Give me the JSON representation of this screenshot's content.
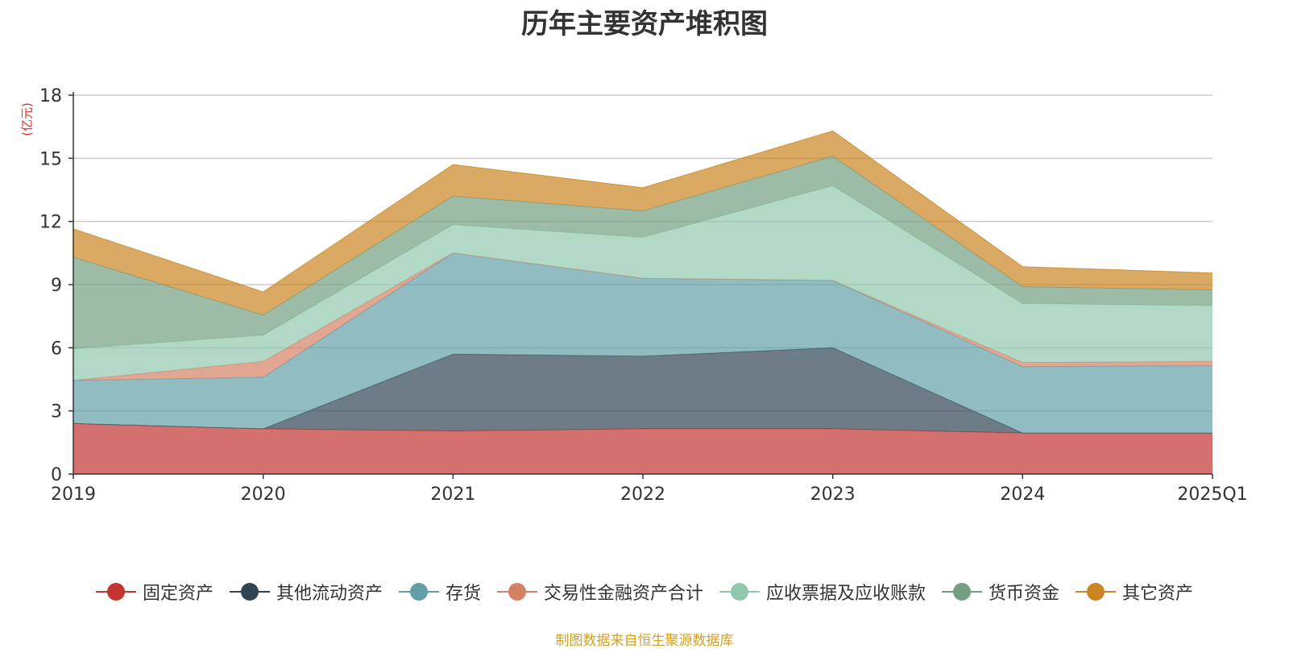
{
  "title": "历年主要资产堆积图",
  "unit_label": "(亿元)",
  "footer": "制图数据来自恒生聚源数据库",
  "colors": {
    "unit": "#e03030",
    "footer": "#d4a020",
    "axis": "#333333",
    "grid": "#cccccc"
  },
  "chart_data": {
    "type": "area",
    "stacked": true,
    "categories": [
      "2019",
      "2020",
      "2021",
      "2022",
      "2023",
      "2024",
      "2025Q1"
    ],
    "ylim": [
      0,
      18
    ],
    "yticks": [
      0,
      3,
      6,
      9,
      12,
      15,
      18
    ],
    "grid": true,
    "legend_position": "bottom",
    "series": [
      {
        "name": "固定资产",
        "color": "#c23531",
        "values": [
          2.4,
          2.15,
          2.05,
          2.15,
          2.15,
          1.95,
          1.95
        ]
      },
      {
        "name": "其他流动资产",
        "color": "#2f4554",
        "values": [
          0.0,
          0.0,
          3.65,
          3.45,
          3.85,
          0.0,
          0.0
        ]
      },
      {
        "name": "存货",
        "color": "#61a0a8",
        "values": [
          2.05,
          2.45,
          4.8,
          3.7,
          3.2,
          3.15,
          3.2
        ]
      },
      {
        "name": "交易性金融资产合计",
        "color": "#d48265",
        "values": [
          0.0,
          0.75,
          0.0,
          0.0,
          0.0,
          0.2,
          0.2
        ]
      },
      {
        "name": "应收票据及应收账款",
        "color": "#91c7ae",
        "values": [
          1.5,
          1.25,
          1.35,
          1.95,
          4.5,
          2.8,
          2.65
        ]
      },
      {
        "name": "货币资金",
        "color": "#749f83",
        "values": [
          4.35,
          0.95,
          1.35,
          1.25,
          1.4,
          0.8,
          0.75
        ]
      },
      {
        "name": "其它资产",
        "color": "#ca8622",
        "values": [
          1.35,
          1.1,
          1.5,
          1.1,
          1.2,
          0.95,
          0.8
        ]
      }
    ]
  }
}
